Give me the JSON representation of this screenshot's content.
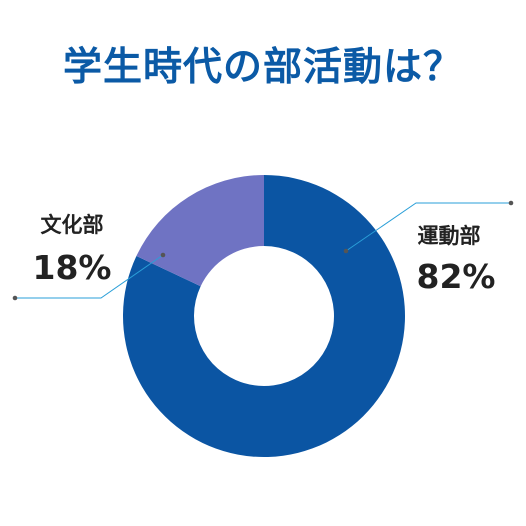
{
  "chart_data": {
    "type": "pie",
    "title": "学生時代の部活動は？",
    "categories": [
      "運動部",
      "文化部"
    ],
    "values": [
      82,
      18
    ],
    "value_labels": [
      "82%",
      "18%"
    ],
    "hole": true,
    "colors": {
      "運動部": "#0b55a3",
      "文化部": "#6f73c3",
      "title": "#0b5aa6",
      "leader_line": "#2a9fd8"
    }
  }
}
